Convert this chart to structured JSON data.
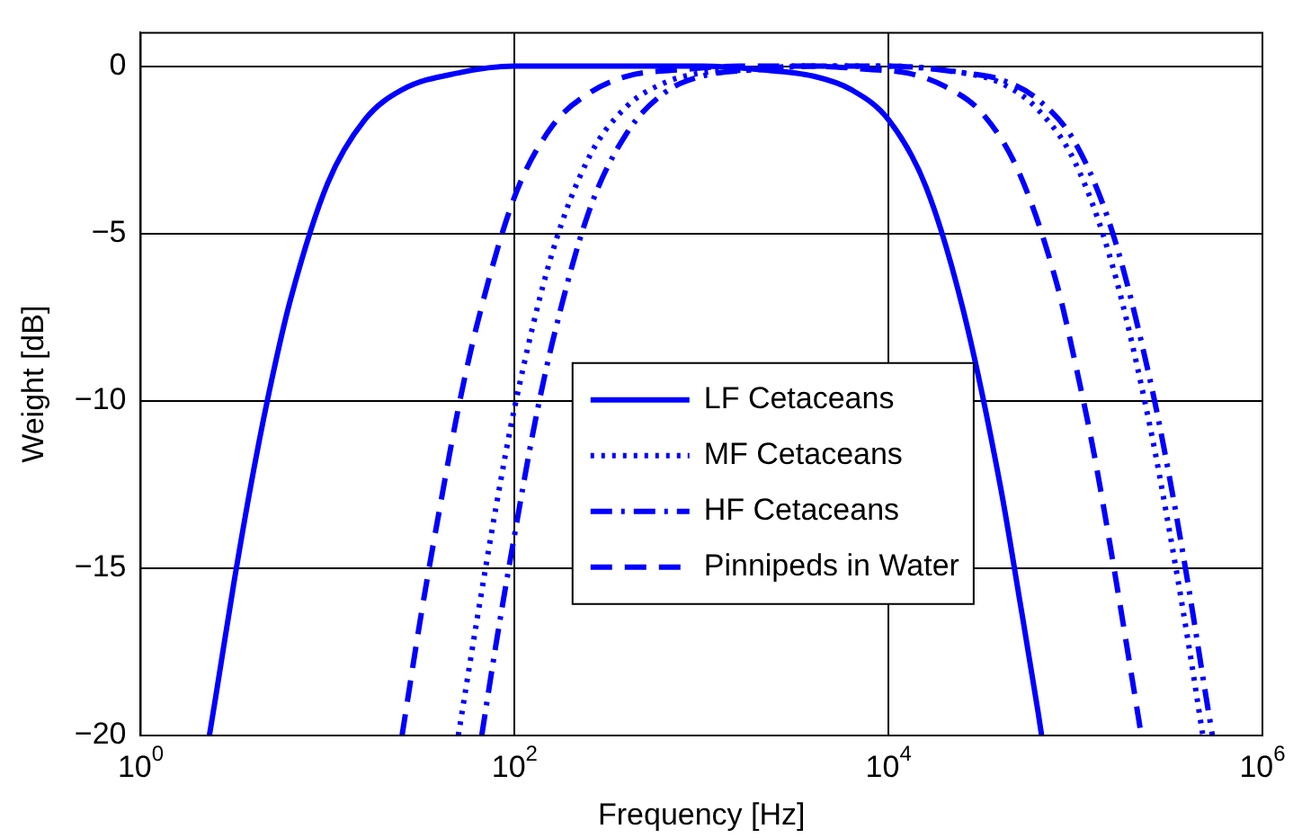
{
  "chart_data": {
    "type": "line",
    "xlabel": "Frequency [Hz]",
    "ylabel": "Weight [dB]",
    "log": "x",
    "xlim": [
      1,
      1000000
    ],
    "ylim": [
      -20,
      1
    ],
    "xticks": [
      {
        "value": 1,
        "label": "10$^{0}$"
      },
      {
        "value": 100,
        "label": "10$^{2}$"
      },
      {
        "value": 10000,
        "label": "10$^{4}$"
      },
      {
        "value": 1000000,
        "label": "10$^{6}$"
      }
    ],
    "yticks": [
      {
        "value": -20,
        "label": "−20"
      },
      {
        "value": -15,
        "label": "−15"
      },
      {
        "value": -10,
        "label": "−10"
      },
      {
        "value": -5,
        "label": "−5"
      },
      0
    ],
    "grid": true,
    "legend": "center",
    "marker": "none",
    "series": [
      {
        "name": "LF Cetaceans",
        "color": "#0000ff",
        "line_style": "solid",
        "x": [
          2.33,
          2.51,
          3.16,
          3.98,
          5.01,
          6.31,
          10,
          15.8,
          25.1,
          50.1,
          100,
          1000,
          2000,
          3981,
          6310,
          10000,
          15849,
          25119,
          39811,
          50119,
          63096,
          65900
        ],
        "values": [
          -20,
          -18.9,
          -15.4,
          -12.2,
          -9.4,
          -7.0,
          -3.5,
          -1.6,
          -0.7,
          -0.2,
          0,
          0,
          -0.1,
          -0.3,
          -0.7,
          -1.6,
          -3.6,
          -7.3,
          -12.6,
          -15.9,
          -19.3,
          -20
        ]
      },
      {
        "name": "MF Cetaceans",
        "color": "#0000ff",
        "line_style": "dotted",
        "x": [
          50,
          63.1,
          79.4,
          100,
          158.5,
          251.2,
          398.1,
          631,
          1000,
          1995,
          3162,
          10000,
          25119,
          39811,
          63096,
          100000,
          158489,
          251189,
          316228,
          398107,
          480000
        ],
        "values": [
          -20,
          -16.5,
          -13.2,
          -10.2,
          -5.6,
          -2.7,
          -1.2,
          -0.5,
          -0.2,
          -0.1,
          0,
          0,
          -0.2,
          -0.5,
          -1.3,
          -2.9,
          -6.0,
          -10.8,
          -13.8,
          -17.1,
          -20
        ]
      },
      {
        "name": "HF Cetaceans",
        "color": "#0000ff",
        "line_style": "dashdot",
        "x": [
          66.7,
          79.4,
          100,
          125.9,
          158.5,
          251.2,
          398.1,
          631,
          1000,
          1995,
          3981,
          10000,
          25119,
          39811,
          63096,
          100000,
          158489,
          251189,
          316228,
          398107,
          501187,
          540000
        ],
        "values": [
          -20,
          -17.3,
          -14.0,
          -10.9,
          -8.3,
          -4.3,
          -2.0,
          -0.8,
          -0.3,
          -0.1,
          0,
          0,
          -0.2,
          -0.4,
          -1.0,
          -2.3,
          -5.0,
          -9.4,
          -12.2,
          -15.4,
          -18.9,
          -20
        ]
      },
      {
        "name": "Pinnipeds in Water",
        "color": "#0000ff",
        "line_style": "dashed",
        "x": [
          25,
          31.6,
          39.8,
          50.1,
          63.1,
          100,
          158.5,
          251.2,
          398.1,
          794.3,
          1585,
          3981,
          7943,
          12589,
          19953,
          31623,
          50119,
          79433,
          100000,
          125893,
          158489,
          199526,
          225000
        ],
        "values": [
          -20,
          -16.4,
          -13.2,
          -10.2,
          -7.7,
          -3.9,
          -1.8,
          -0.8,
          -0.3,
          -0.1,
          0,
          0,
          -0.1,
          -0.2,
          -0.6,
          -1.4,
          -3.2,
          -6.5,
          -8.9,
          -11.6,
          -14.8,
          -18.2,
          -20
        ]
      }
    ]
  }
}
